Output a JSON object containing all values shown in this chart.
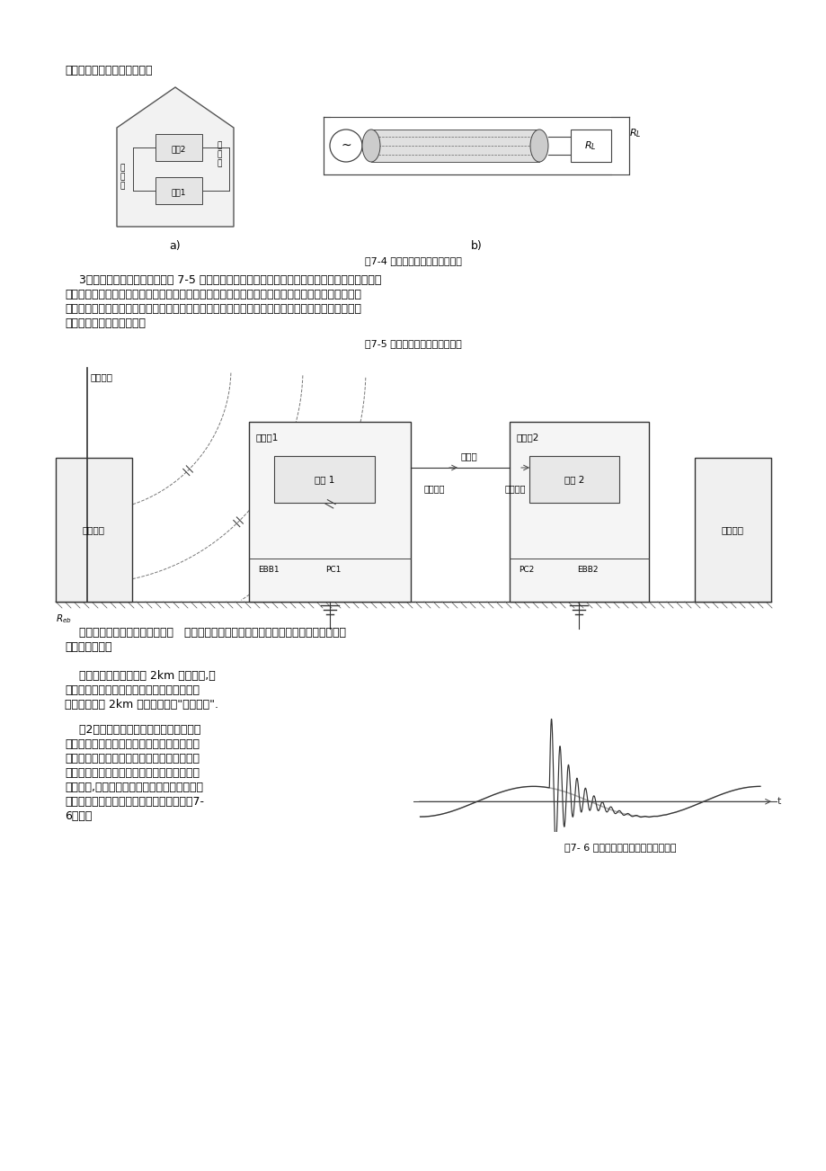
{
  "page_bg": "#ffffff",
  "text_color": "#000000",
  "line1": "直接流过负载阻抗和信号源。",
  "fig74_caption": "图7-4 感性（电磁场）耦合的电涌",
  "fig74_sub_a": "a)",
  "fig74_sub_b": "b)",
  "para3_line1": "    3）容性辐射耦合的电涌。如图 7-5 所示，雷击接闪器时，雷电流在引下线和接地装置阻抗上产生",
  "para3_line2": "压降，使接闪器处有很高的对地电压，且迅速积聚大量的雷电荷。接闪器与远方信号线导体间有耦合",
  "para3_line3": "电容效应存在，接闪器上电荷的快速上升，相当于电容充电过程，信号线导体作为电容的另一极也有",
  "para3_line4": "电荷注入，形成电涌电流。",
  "fig75_caption": "图7-5 容性（静电场）耦合的电涌",
  "para_cap1": "    容性耦合的另一个常见途径是中   低压系统间通过变压器绕组间寄生电容耦合由涌，但其",
  "para_cap2": "量值通常不大。",
  "para_risk1": "    一般认为，在距雷击点 2km 的范围内,电",
  "para_risk2": "子信息系统都可能被传导或辐射耦合的电涌所",
  "para_risk3": "破坏，因此称 2km 为电涌危害的\"危险半径\".",
  "para_op1": "    （2）电力系统操作耦合的电涌电力系统",
  "para_op2": "操作产生的电磁干扰比雷电干扰更为频繁，因",
  "para_op3": "此对低压系统和中高压二次系统的影响也不能",
  "para_op4": "忽视。这种影响主要缘于操作所引起的能量分",
  "para_op5": "布的调整,如切除电容时可能出现的高频振荡过",
  "para_op6": "电压，就是一种电场能量的调整过程，如图7-",
  "para_op7": "6所示。",
  "fig76_caption": "图7- 6 切除电容器时的操作电涌过电压"
}
